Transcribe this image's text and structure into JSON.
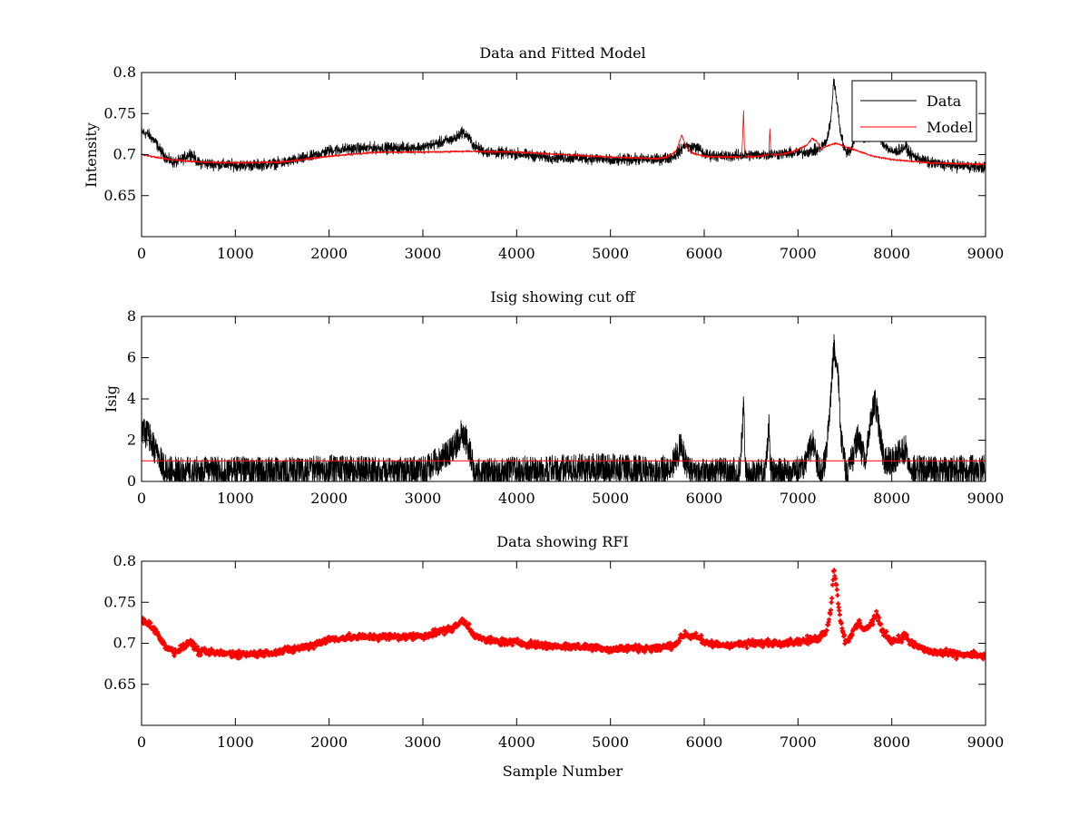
{
  "chart_data": [
    {
      "type": "line",
      "title": "Data and Fitted Model",
      "xlabel": "",
      "ylabel": "Intensity",
      "xlim": [
        0,
        9000
      ],
      "ylim": [
        0.6,
        0.8
      ],
      "xticks": [
        0,
        1000,
        2000,
        3000,
        4000,
        5000,
        6000,
        7000,
        8000,
        9000
      ],
      "yticks": [
        0.65,
        0.7,
        0.75,
        0.8
      ],
      "ytick_labels": [
        "0.65",
        "0.7",
        "0.75",
        "0.8"
      ],
      "legend": {
        "position": "top-right",
        "entries": [
          "Data",
          "Model"
        ]
      },
      "grid": false,
      "series": [
        {
          "name": "Data",
          "color": "#000000",
          "noise": 0.006,
          "x": [
            0,
            80,
            150,
            200,
            280,
            350,
            420,
            480,
            520,
            560,
            600,
            800,
            1000,
            1200,
            1500,
            1800,
            2000,
            2200,
            2500,
            2800,
            3000,
            3200,
            3350,
            3420,
            3480,
            3550,
            3650,
            3800,
            4000,
            4300,
            4600,
            4900,
            5000,
            5200,
            5500,
            5650,
            5700,
            5750,
            5800,
            5850,
            5900,
            5960,
            6000,
            6200,
            6400,
            6600,
            6800,
            7000,
            7200,
            7300,
            7350,
            7380,
            7410,
            7450,
            7500,
            7560,
            7600,
            7650,
            7700,
            7760,
            7800,
            7840,
            7900,
            8000,
            8100,
            8150,
            8200,
            8400,
            8600,
            8800,
            9000
          ],
          "y": [
            0.728,
            0.724,
            0.715,
            0.705,
            0.694,
            0.69,
            0.693,
            0.698,
            0.702,
            0.697,
            0.69,
            0.688,
            0.687,
            0.687,
            0.69,
            0.697,
            0.705,
            0.707,
            0.708,
            0.708,
            0.709,
            0.715,
            0.72,
            0.728,
            0.722,
            0.71,
            0.704,
            0.702,
            0.701,
            0.697,
            0.696,
            0.695,
            0.692,
            0.694,
            0.694,
            0.697,
            0.7,
            0.706,
            0.712,
            0.708,
            0.71,
            0.706,
            0.7,
            0.698,
            0.699,
            0.7,
            0.701,
            0.702,
            0.705,
            0.715,
            0.74,
            0.79,
            0.77,
            0.73,
            0.704,
            0.705,
            0.718,
            0.725,
            0.718,
            0.72,
            0.728,
            0.735,
            0.715,
            0.703,
            0.706,
            0.71,
            0.7,
            0.69,
            0.687,
            0.686,
            0.684
          ]
        },
        {
          "name": "Model",
          "color": "#ff0000",
          "noise": 0.0008,
          "x": [
            0,
            300,
            600,
            1000,
            1500,
            2000,
            2500,
            3000,
            3500,
            4000,
            4500,
            5000,
            5500,
            5600,
            5700,
            5760,
            5800,
            5850,
            5900,
            6000,
            6200,
            6400,
            6420,
            6430,
            6440,
            6460,
            6600,
            6690,
            6700,
            6710,
            6730,
            6900,
            7000,
            7100,
            7150,
            7200,
            7250,
            7300,
            7350,
            7400,
            7450,
            7600,
            7800,
            8000,
            8400,
            9000
          ],
          "y": [
            0.7,
            0.694,
            0.691,
            0.69,
            0.691,
            0.698,
            0.703,
            0.703,
            0.704,
            0.703,
            0.7,
            0.697,
            0.695,
            0.697,
            0.704,
            0.724,
            0.712,
            0.703,
            0.701,
            0.698,
            0.697,
            0.697,
            0.754,
            0.705,
            0.698,
            0.697,
            0.698,
            0.7,
            0.732,
            0.702,
            0.699,
            0.702,
            0.706,
            0.712,
            0.72,
            0.716,
            0.706,
            0.71,
            0.712,
            0.714,
            0.712,
            0.706,
            0.698,
            0.694,
            0.69,
            0.688
          ]
        }
      ]
    },
    {
      "type": "line",
      "title": "Isig showing cut off",
      "xlabel": "",
      "ylabel": "Isig",
      "xlim": [
        0,
        9000
      ],
      "ylim": [
        0,
        8
      ],
      "xticks": [
        0,
        1000,
        2000,
        3000,
        4000,
        5000,
        6000,
        7000,
        8000,
        9000
      ],
      "yticks": [
        0,
        2,
        4,
        6,
        8
      ],
      "ytick_labels": [
        "0",
        "2",
        "4",
        "6",
        "8"
      ],
      "grid": false,
      "series": [
        {
          "color": "#000000",
          "noise": 0.45,
          "clip_min": 0,
          "x": [
            0,
            80,
            150,
            250,
            400,
            800,
            1200,
            1600,
            2000,
            2500,
            3000,
            3200,
            3350,
            3420,
            3480,
            3550,
            3650,
            4000,
            4500,
            5000,
            5500,
            5650,
            5720,
            5750,
            5790,
            5850,
            6000,
            6380,
            6420,
            6440,
            6480,
            6650,
            6690,
            6710,
            6760,
            7050,
            7130,
            7160,
            7200,
            7260,
            7300,
            7340,
            7380,
            7420,
            7460,
            7520,
            7600,
            7640,
            7680,
            7720,
            7780,
            7820,
            7860,
            7920,
            8000,
            8100,
            8150,
            8200,
            8400,
            9000
          ],
          "y": [
            2.4,
            2.2,
            1.4,
            0.6,
            0.5,
            0.5,
            0.5,
            0.5,
            0.6,
            0.5,
            0.5,
            1.1,
            1.8,
            2.4,
            1.8,
            0.5,
            0.4,
            0.5,
            0.6,
            0.7,
            0.5,
            0.7,
            1.4,
            1.9,
            1.0,
            0.5,
            0.4,
            0.5,
            3.6,
            0.6,
            0.3,
            0.4,
            2.7,
            0.5,
            0.4,
            0.6,
            1.6,
            1.8,
            1.0,
            0.4,
            1.5,
            3.2,
            6.5,
            5.8,
            2.0,
            0.4,
            1.4,
            2.2,
            1.5,
            1.2,
            3.0,
            4.0,
            2.8,
            1.0,
            1.0,
            1.4,
            1.6,
            0.6,
            0.5,
            0.6
          ]
        },
        {
          "color": "#ff0000",
          "noise": 0,
          "x": [
            0,
            9000
          ],
          "y": [
            1,
            1
          ]
        }
      ]
    },
    {
      "type": "scatter",
      "title": "Data showing RFI",
      "xlabel": "Sample Number",
      "ylabel": "",
      "xlim": [
        0,
        9000
      ],
      "ylim": [
        0.6,
        0.8
      ],
      "xticks": [
        0,
        1000,
        2000,
        3000,
        4000,
        5000,
        6000,
        7000,
        8000,
        9000
      ],
      "yticks": [
        0.65,
        0.7,
        0.75,
        0.8
      ],
      "ytick_labels": [
        "0.65",
        "0.7",
        "0.75",
        "0.8"
      ],
      "grid": false,
      "series": [
        {
          "color": "#ff0000",
          "marker": "+",
          "noise": 0.006,
          "x": [
            0,
            80,
            150,
            200,
            280,
            350,
            420,
            480,
            520,
            560,
            600,
            800,
            1000,
            1200,
            1500,
            1800,
            2000,
            2200,
            2500,
            2800,
            3000,
            3200,
            3350,
            3420,
            3480,
            3550,
            3650,
            3800,
            4000,
            4300,
            4600,
            4900,
            5000,
            5200,
            5500,
            5650,
            5700,
            5750,
            5800,
            5850,
            5900,
            5960,
            6000,
            6200,
            6400,
            6600,
            6800,
            7000,
            7200,
            7300,
            7350,
            7380,
            7410,
            7450,
            7500,
            7560,
            7600,
            7650,
            7700,
            7760,
            7800,
            7840,
            7900,
            8000,
            8100,
            8150,
            8200,
            8400,
            8600,
            8800,
            9000
          ],
          "y": [
            0.728,
            0.724,
            0.715,
            0.705,
            0.694,
            0.69,
            0.693,
            0.698,
            0.702,
            0.697,
            0.69,
            0.688,
            0.687,
            0.687,
            0.69,
            0.697,
            0.705,
            0.707,
            0.708,
            0.708,
            0.709,
            0.715,
            0.72,
            0.728,
            0.722,
            0.71,
            0.704,
            0.702,
            0.701,
            0.697,
            0.696,
            0.695,
            0.692,
            0.694,
            0.694,
            0.697,
            0.7,
            0.706,
            0.712,
            0.708,
            0.71,
            0.706,
            0.7,
            0.698,
            0.699,
            0.7,
            0.701,
            0.702,
            0.705,
            0.715,
            0.74,
            0.79,
            0.77,
            0.73,
            0.704,
            0.705,
            0.718,
            0.725,
            0.718,
            0.72,
            0.728,
            0.735,
            0.715,
            0.703,
            0.706,
            0.71,
            0.7,
            0.69,
            0.687,
            0.686,
            0.684
          ]
        }
      ]
    }
  ]
}
